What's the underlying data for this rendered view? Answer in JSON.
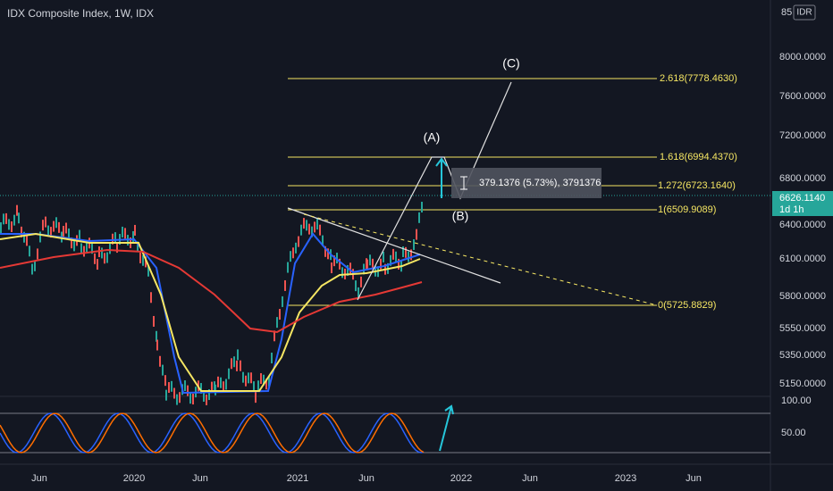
{
  "header": {
    "title": "IDX Composite Index, 1W, IDX"
  },
  "price_axis": {
    "currency": "IDR",
    "top_label": "85",
    "ticks": [
      "8000.0000",
      "7600.0000",
      "7200.0000",
      "6800.0000",
      "6400.0000",
      "6100.0000",
      "5800.0000",
      "5550.0000",
      "5350.0000",
      "5150.0000"
    ],
    "current_price": "6626.1140",
    "countdown": "1d 1h"
  },
  "time_axis": {
    "labels": [
      "Jun",
      "2020",
      "Jun",
      "2021",
      "Jun",
      "2022",
      "Jun",
      "2023",
      "Jun"
    ]
  },
  "fib_levels": [
    "2.618(7778.4630)",
    "1.618(6994.4370)",
    "1.272(6723.1640)",
    "1(6509.9089)",
    "0(5725.8829)"
  ],
  "waves": [
    "(A)",
    "(B)",
    "(C)"
  ],
  "measure": "379.1376 (5.73%), 3791376",
  "oscillator_axis": [
    "100.00",
    "50.00"
  ]
}
